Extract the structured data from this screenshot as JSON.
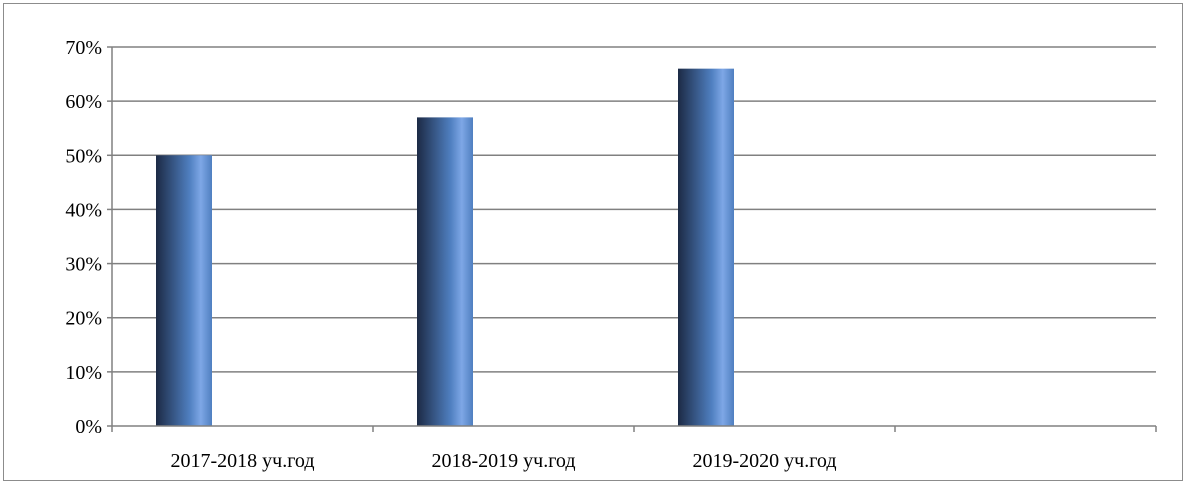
{
  "chart_data": {
    "type": "bar",
    "categories": [
      "2017-2018 уч.год",
      "2018-2019 уч.год",
      "2019-2020 уч.год",
      ""
    ],
    "values": [
      50,
      57,
      66,
      null
    ],
    "y_tick_labels": [
      "0%",
      "10%",
      "20%",
      "30%",
      "40%",
      "50%",
      "60%",
      "70%"
    ],
    "ylim": [
      0,
      70
    ],
    "y_unit": "%",
    "grid": true,
    "legend": "none",
    "colors": {
      "bar_dark": "#1c2a45",
      "bar_mid": "#4f7fc0",
      "bar_light": "#7ea7e6",
      "gridline": "#808080",
      "axis": "#808080"
    }
  }
}
